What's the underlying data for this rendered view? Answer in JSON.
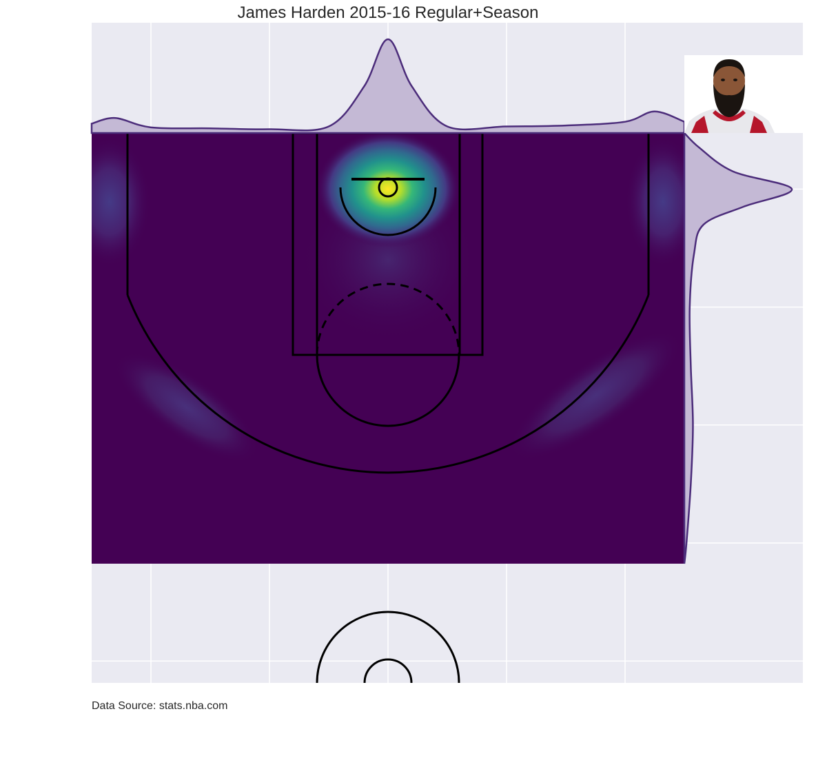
{
  "chart_data": {
    "type": "heatmap",
    "title": "James Harden 2015-16 Regular+Season",
    "source": "Data Source: stats.nba.com",
    "colormap": "viridis",
    "colors": {
      "axes_bg": "#EAEAF2",
      "grid": "#FFFFFF",
      "court_lines": "#000000",
      "marginal_line": "#4B2C7A",
      "marginal_fill": "#C4B9D5",
      "heat_low": "#440154",
      "heat_mid": "#21918C",
      "heat_high": "#FDE725"
    },
    "x_range": [
      -250,
      250
    ],
    "y_range": [
      -47.5,
      422.5
    ],
    "court_y_range": [
      -47.5,
      317.5
    ],
    "grid": true,
    "x_gridlines": [
      -200,
      -100,
      0,
      100,
      200
    ],
    "y_gridlines": [
      0,
      100,
      200,
      300,
      400
    ],
    "player_image": "photo of the player in a red and white Houston Rockets jersey, top-right",
    "density_hotspots": [
      {
        "label": "rim",
        "x": 0,
        "y": 0,
        "intensity": 1.0
      },
      {
        "label": "left corner three",
        "x": -235,
        "y": 5,
        "intensity": 0.14
      },
      {
        "label": "right corner three",
        "x": 232,
        "y": 5,
        "intensity": 0.16
      },
      {
        "label": "left wing three",
        "x": -170,
        "y": 185,
        "intensity": 0.06
      },
      {
        "label": "right wing three",
        "x": 175,
        "y": 175,
        "intensity": 0.08
      },
      {
        "label": "paint",
        "x": 0,
        "y": 60,
        "intensity": 0.1
      }
    ],
    "x_marginal": [
      {
        "x": -250,
        "d": 0.1
      },
      {
        "x": -230,
        "d": 0.16
      },
      {
        "x": -200,
        "d": 0.06
      },
      {
        "x": -150,
        "d": 0.05
      },
      {
        "x": -100,
        "d": 0.04
      },
      {
        "x": -50,
        "d": 0.07
      },
      {
        "x": -20,
        "d": 0.5
      },
      {
        "x": 0,
        "d": 1.0
      },
      {
        "x": 20,
        "d": 0.5
      },
      {
        "x": 50,
        "d": 0.07
      },
      {
        "x": 100,
        "d": 0.07
      },
      {
        "x": 150,
        "d": 0.08
      },
      {
        "x": 200,
        "d": 0.12
      },
      {
        "x": 225,
        "d": 0.23
      },
      {
        "x": 250,
        "d": 0.12
      }
    ],
    "y_marginal": [
      {
        "y": -47.5,
        "d": 0.0
      },
      {
        "y": -35,
        "d": 0.14
      },
      {
        "y": -15,
        "d": 0.45
      },
      {
        "y": 0,
        "d": 1.0
      },
      {
        "y": 15,
        "d": 0.55
      },
      {
        "y": 30,
        "d": 0.18
      },
      {
        "y": 55,
        "d": 0.09
      },
      {
        "y": 100,
        "d": 0.05
      },
      {
        "y": 150,
        "d": 0.06
      },
      {
        "y": 200,
        "d": 0.08
      },
      {
        "y": 250,
        "d": 0.06
      },
      {
        "y": 300,
        "d": 0.02
      },
      {
        "y": 317.5,
        "d": 0.0
      }
    ]
  }
}
